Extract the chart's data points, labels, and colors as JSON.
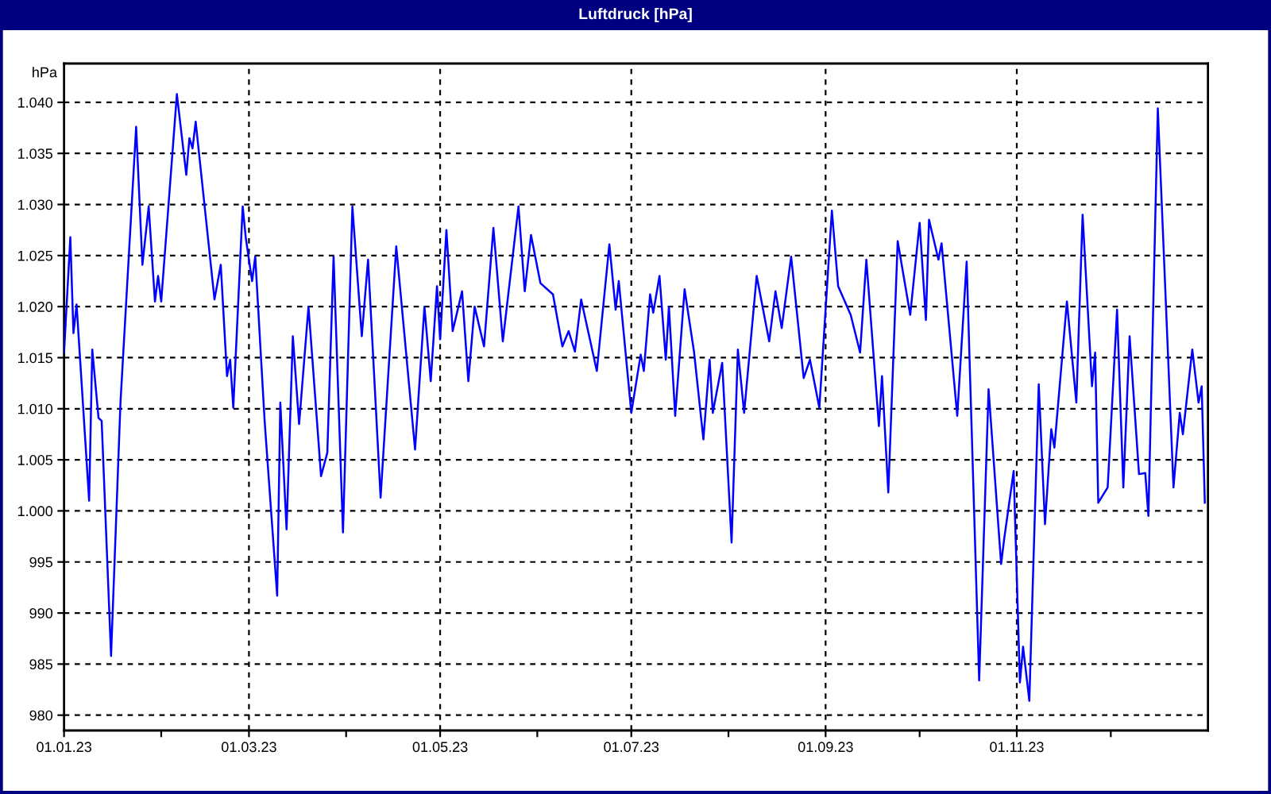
{
  "chart_data": {
    "type": "line",
    "title": "Luftdruck [hPa]",
    "ylabel": "hPa",
    "color": "#0000ff",
    "grid": true,
    "xlim": [
      "2023-01-01",
      "2024-01-01"
    ],
    "xticks": [
      {
        "value": "2023-01-01",
        "label": "01.01.23"
      },
      {
        "value": "2023-02-01",
        "label": null
      },
      {
        "value": "2023-03-01",
        "label": "01.03.23"
      },
      {
        "value": "2023-04-01",
        "label": null
      },
      {
        "value": "2023-05-01",
        "label": "01.05.23"
      },
      {
        "value": "2023-06-01",
        "label": null
      },
      {
        "value": "2023-07-01",
        "label": "01.07.23"
      },
      {
        "value": "2023-08-01",
        "label": null
      },
      {
        "value": "2023-09-01",
        "label": "01.09.23"
      },
      {
        "value": "2023-10-01",
        "label": null
      },
      {
        "value": "2023-11-01",
        "label": "01.11.23"
      },
      {
        "value": "2023-12-01",
        "label": null
      }
    ],
    "ylim": [
      978.5,
      1043.8
    ],
    "yticks": [
      980,
      985,
      990,
      995,
      {
        "value": 1000,
        "label": "1.000"
      },
      {
        "value": 1005,
        "label": "1.005"
      },
      {
        "value": 1010,
        "label": "1.010"
      },
      {
        "value": 1015,
        "label": "1.015"
      },
      {
        "value": 1020,
        "label": "1.020"
      },
      {
        "value": 1025,
        "label": "1.025"
      },
      {
        "value": 1030,
        "label": "1.030"
      },
      {
        "value": 1035,
        "label": "1.035"
      },
      {
        "value": 1040,
        "label": "1.040"
      }
    ],
    "x": [
      "2023-01-01",
      "2023-01-03",
      "2023-01-04",
      "2023-01-05",
      "2023-01-09",
      "2023-01-10",
      "2023-01-12",
      "2023-01-13",
      "2023-01-16",
      "2023-01-19",
      "2023-01-24",
      "2023-01-26",
      "2023-01-28",
      "2023-01-30",
      "2023-01-31",
      "2023-02-01",
      "2023-02-06",
      "2023-02-09",
      "2023-02-10",
      "2023-02-11",
      "2023-02-12",
      "2023-02-18",
      "2023-02-20",
      "2023-02-22",
      "2023-02-23",
      "2023-02-24",
      "2023-02-27",
      "2023-02-28",
      "2023-03-02",
      "2023-03-03",
      "2023-03-06",
      "2023-03-10",
      "2023-03-11",
      "2023-03-13",
      "2023-03-15",
      "2023-03-17",
      "2023-03-20",
      "2023-03-24",
      "2023-03-26",
      "2023-03-28",
      "2023-03-31",
      "2023-04-03",
      "2023-04-06",
      "2023-04-08",
      "2023-04-12",
      "2023-04-17",
      "2023-04-23",
      "2023-04-26",
      "2023-04-28",
      "2023-04-30",
      "2023-05-01",
      "2023-05-03",
      "2023-05-05",
      "2023-05-08",
      "2023-05-10",
      "2023-05-12",
      "2023-05-15",
      "2023-05-18",
      "2023-05-21",
      "2023-05-26",
      "2023-05-28",
      "2023-05-30",
      "2023-06-02",
      "2023-06-06",
      "2023-06-09",
      "2023-06-11",
      "2023-06-13",
      "2023-06-15",
      "2023-06-20",
      "2023-06-24",
      "2023-06-26",
      "2023-06-27",
      "2023-07-01",
      "2023-07-04",
      "2023-07-05",
      "2023-07-07",
      "2023-07-08",
      "2023-07-10",
      "2023-07-12",
      "2023-07-13",
      "2023-07-15",
      "2023-07-18",
      "2023-07-21",
      "2023-07-24",
      "2023-07-26",
      "2023-07-27",
      "2023-07-30",
      "2023-08-02",
      "2023-08-04",
      "2023-08-06",
      "2023-08-10",
      "2023-08-14",
      "2023-08-16",
      "2023-08-18",
      "2023-08-21",
      "2023-08-25",
      "2023-08-27",
      "2023-08-30",
      "2023-09-03",
      "2023-09-05",
      "2023-09-09",
      "2023-09-12",
      "2023-09-14",
      "2023-09-18",
      "2023-09-19",
      "2023-09-21",
      "2023-09-24",
      "2023-09-28",
      "2023-10-01",
      "2023-10-03",
      "2023-10-04",
      "2023-10-07",
      "2023-10-08",
      "2023-10-13",
      "2023-10-16",
      "2023-10-20",
      "2023-10-23",
      "2023-10-27",
      "2023-10-28",
      "2023-10-31",
      "2023-11-02",
      "2023-11-03",
      "2023-11-05",
      "2023-11-08",
      "2023-11-10",
      "2023-11-12",
      "2023-11-13",
      "2023-11-17",
      "2023-11-20",
      "2023-11-22",
      "2023-11-25",
      "2023-11-26",
      "2023-11-27",
      "2023-11-30",
      "2023-12-03",
      "2023-12-05",
      "2023-12-07",
      "2023-12-10",
      "2023-12-12",
      "2023-12-13",
      "2023-12-16",
      "2023-12-21",
      "2023-12-23",
      "2023-12-24",
      "2023-12-27",
      "2023-12-29",
      "2023-12-30",
      "2023-12-31"
    ],
    "values": [
      1015.5,
      1026.8,
      1017.4,
      1020.2,
      1001.0,
      1015.8,
      1009.1,
      1008.8,
      985.8,
      1010.6,
      1037.6,
      1024.1,
      1029.8,
      1020.5,
      1023.0,
      1020.5,
      1040.8,
      1032.9,
      1036.5,
      1035.5,
      1038.1,
      1020.7,
      1024.1,
      1013.2,
      1014.8,
      1010.1,
      1029.8,
      1026.7,
      1022.5,
      1024.9,
      1008.8,
      991.7,
      1010.6,
      998.2,
      1017.1,
      1008.5,
      1020.0,
      1003.4,
      1005.7,
      1024.9,
      997.9,
      1029.8,
      1017.1,
      1024.6,
      1001.3,
      1025.9,
      1006.0,
      1020.0,
      1012.7,
      1022.0,
      1016.8,
      1027.5,
      1017.6,
      1021.5,
      1012.7,
      1020.0,
      1016.1,
      1027.7,
      1016.6,
      1029.8,
      1021.5,
      1027.0,
      1022.3,
      1021.2,
      1016.1,
      1017.6,
      1015.6,
      1020.7,
      1013.7,
      1026.1,
      1019.7,
      1022.5,
      1009.6,
      1015.3,
      1013.7,
      1021.2,
      1019.4,
      1023.0,
      1014.8,
      1020.0,
      1009.3,
      1021.7,
      1015.6,
      1007.0,
      1014.8,
      1009.6,
      1014.5,
      996.9,
      1015.8,
      1009.6,
      1023.0,
      1016.6,
      1021.5,
      1017.9,
      1024.9,
      1013.0,
      1014.8,
      1010.1,
      1029.4,
      1022.0,
      1019.2,
      1015.5,
      1024.6,
      1008.3,
      1013.2,
      1001.8,
      1026.4,
      1019.2,
      1028.2,
      1018.7,
      1028.5,
      1024.6,
      1026.2,
      1009.3,
      1024.4,
      983.4,
      1011.9,
      994.8,
      997.3,
      1003.9,
      983.2,
      986.7,
      981.4,
      1012.4,
      998.7,
      1008.0,
      1006.2,
      1020.5,
      1010.6,
      1029.0,
      1012.2,
      1015.5,
      1000.8,
      1002.3,
      1019.7,
      1002.3,
      1017.1,
      1003.6,
      1003.7,
      999.5,
      1039.4,
      1002.3,
      1009.6,
      1007.5,
      1015.8,
      1010.6,
      1012.2,
      1000.8
    ]
  }
}
